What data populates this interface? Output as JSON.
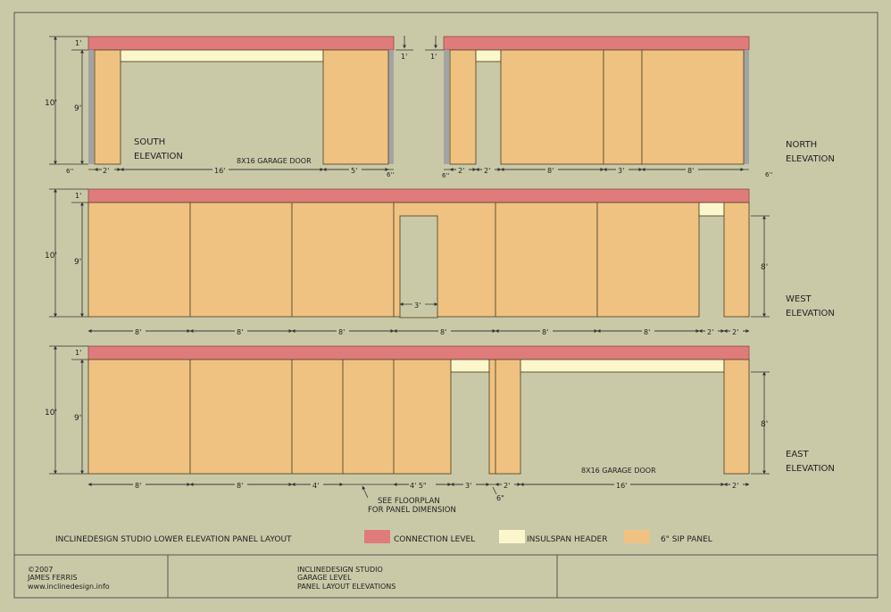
{
  "colors": {
    "background": "#c9c9a8",
    "connection": "#e07b7b",
    "header": "#fbf6cc",
    "sip": "#efc281",
    "post": "#a3a3a3"
  },
  "dims": {
    "h10": "10'",
    "h9": "9'",
    "h1": "1'",
    "h8": "8'",
    "d2": "2'",
    "d3": "3'",
    "d4": "4'",
    "d5": "5'",
    "d6in": "6\"",
    "d6": "6''",
    "d8": "8'",
    "d16": "16'",
    "d45": "4' 5\""
  },
  "south": {
    "title1": "SOUTH",
    "title2": "ELEVATION",
    "door": "8X16 GARAGE DOOR"
  },
  "north": {
    "title1": "NORTH",
    "title2": "ELEVATION"
  },
  "west": {
    "title1": "WEST",
    "title2": "ELEVATION"
  },
  "east": {
    "title1": "EAST",
    "title2": "ELEVATION",
    "door": "8X16 GARAGE DOOR",
    "note1": "SEE FLOORPLAN",
    "note2": "FOR PANEL DIMENSION"
  },
  "legend": {
    "title": "INCLINEDESIGN STUDIO  LOWER ELEVATION PANEL LAYOUT",
    "connection": "CONNECTION LEVEL",
    "header": "INSULSPAN HEADER",
    "sip": "6\" SIP PANEL"
  },
  "titleblock": {
    "copy": "©2007",
    "author": "JAMES FERRIS",
    "url": "www.inclinedesign.info",
    "line1": "INCLINEDESIGN STUDIO",
    "line2": "GARAGE LEVEL",
    "line3": "PANEL LAYOUT ELEVATIONS"
  }
}
